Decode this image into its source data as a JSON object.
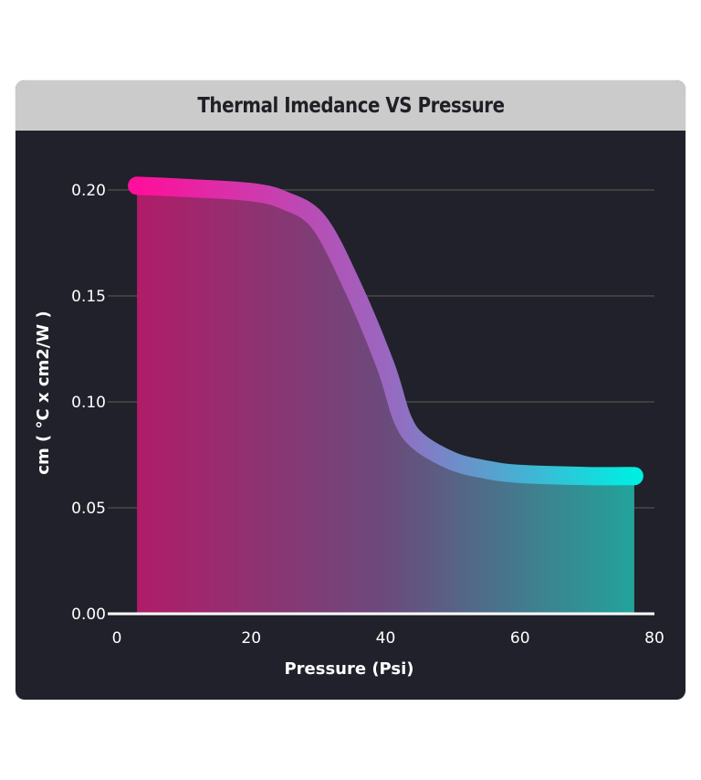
{
  "chart_data": {
    "type": "area",
    "title": "Thermal Imedance VS Pressure",
    "xlabel": "Pressure (Psi)",
    "ylabel": "cm ( °C x cm2/W )",
    "xlim": [
      0,
      80
    ],
    "ylim": [
      0,
      0.2
    ],
    "x_ticks": [
      "0",
      "20",
      "40",
      "60",
      "80"
    ],
    "y_ticks": [
      "0.00",
      "0.05",
      "0.10",
      "0.15",
      "0.20"
    ],
    "grid": "horizontal",
    "legend": "none",
    "series": [
      {
        "name": "Thermal Impedance",
        "x": [
          3,
          10,
          20,
          25,
          30,
          35,
          40,
          42.5,
          45,
          50,
          55,
          60,
          70,
          77
        ],
        "y": [
          0.202,
          0.201,
          0.199,
          0.195,
          0.185,
          0.155,
          0.117,
          0.092,
          0.081,
          0.072,
          0.068,
          0.066,
          0.065,
          0.065
        ]
      }
    ],
    "colors": {
      "line_start": "#ff0f9b",
      "line_mid": "#9a67c0",
      "line_end": "#00eee2",
      "fill_start": "#b01c68",
      "fill_mid": "#6b4a7c",
      "fill_end": "#22a39b",
      "background": "#20212a",
      "header": "#cbcbcb",
      "grid": "#3f3f40",
      "axis": "#ffffff"
    }
  }
}
